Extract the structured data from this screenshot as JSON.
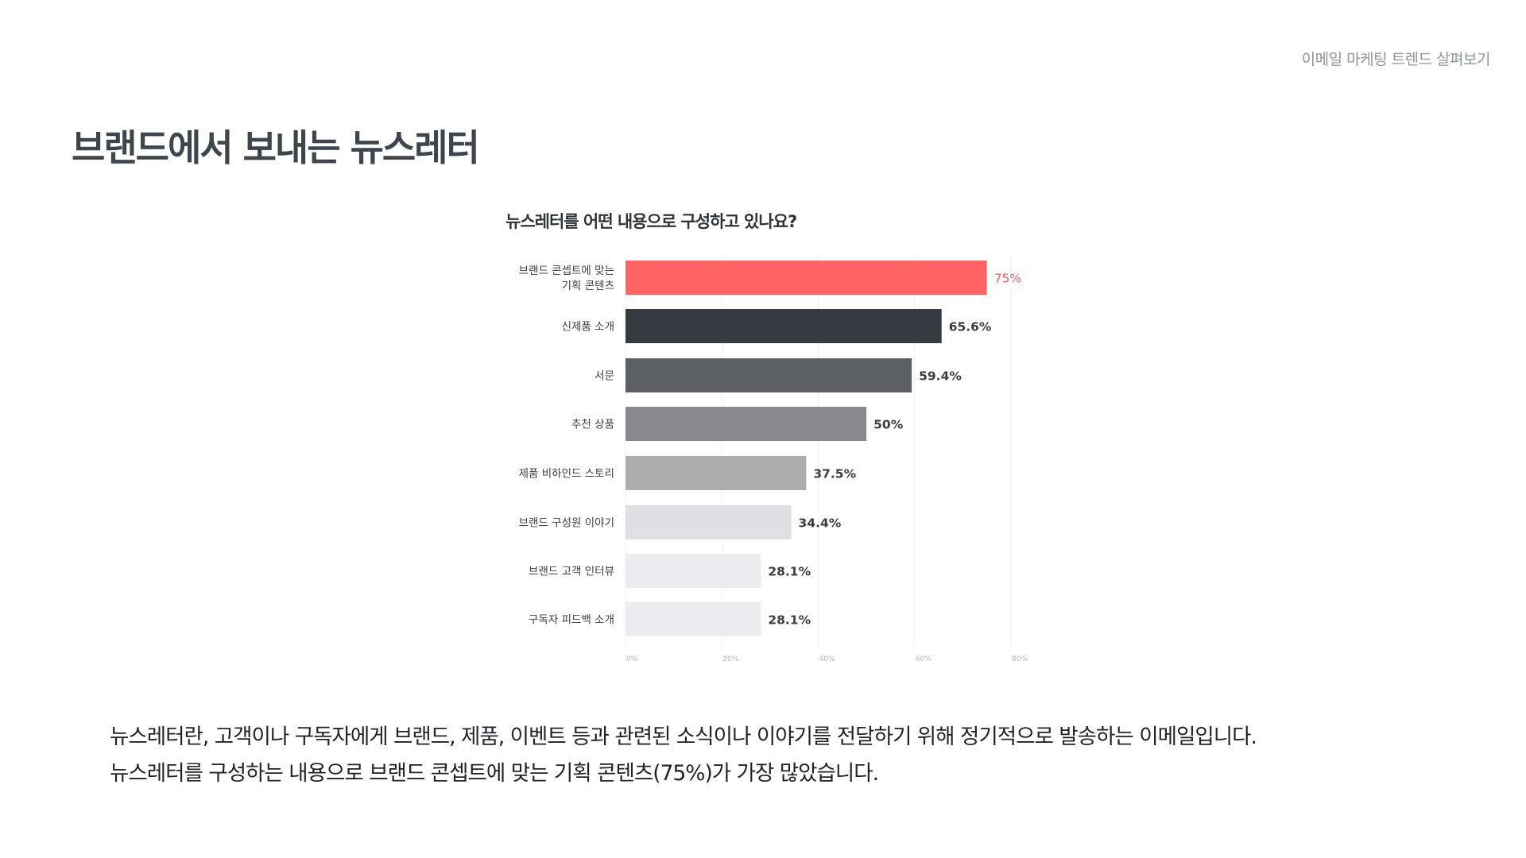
{
  "header": {
    "tag": "이메일 마케팅 트렌드 살펴보기"
  },
  "page_title": "브랜드에서 보내는 뉴스레터",
  "chart_data": {
    "type": "bar",
    "orientation": "horizontal",
    "title": "뉴스레터를 어떤 내용으로 구성하고 있나요?",
    "categories": [
      [
        "브랜드 콘셉트에 맞는",
        "기획 콘텐츠"
      ],
      [
        "신제품 소개"
      ],
      [
        "서문"
      ],
      [
        "추천 상품"
      ],
      [
        "제품 비하인드 스토리"
      ],
      [
        "브랜드 구성원 이야기"
      ],
      [
        "브랜드 고객 인터뷰"
      ],
      [
        "구독자 피드백 소개"
      ]
    ],
    "values": [
      75,
      65.6,
      59.4,
      50,
      37.5,
      34.4,
      28.1,
      28.1
    ],
    "value_labels": [
      "75%",
      "65.6%",
      "59.4%",
      "50%",
      "37.5%",
      "34.4%",
      "28.1%",
      "28.1%"
    ],
    "colors": [
      "#ff6363",
      "#363a41",
      "#5c5f63",
      "#87898c",
      "#acadaf",
      "#dfe0e3",
      "#ebecef",
      "#ebecef"
    ],
    "label_colors": [
      "#ff5a5a",
      "#3a3d42",
      "#3a3d42",
      "#3a3d42",
      "#3a3d42",
      "#3a3d42",
      "#3a3d42",
      "#3a3d42"
    ],
    "xlim": [
      0,
      80
    ],
    "x_ticks": [
      0,
      20,
      40,
      60,
      80
    ],
    "x_tick_labels": [
      "0%",
      "20%",
      "40%",
      "60%",
      "80%"
    ],
    "grid": true,
    "legend": "none"
  },
  "description": {
    "line1": "뉴스레터란, 고객이나 구독자에게 브랜드, 제품, 이벤트 등과 관련된 소식이나 이야기를 전달하기 위해 정기적으로 발송하는 이메일입니다.",
    "line2": "뉴스레터를 구성하는 내용으로 브랜드 콘셉트에 맞는 기획 콘텐츠(75%)가 가장 많았습니다."
  }
}
